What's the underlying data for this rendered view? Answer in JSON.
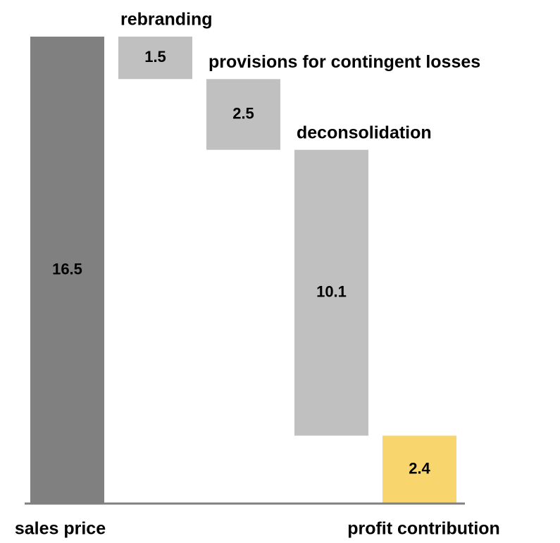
{
  "chart_data": {
    "type": "waterfall",
    "categories": [
      "sales price",
      "rebranding",
      "provisions for contingent losses",
      "deconsolidation",
      "profit contribution"
    ],
    "values": [
      16.5,
      1.5,
      2.5,
      10.1,
      2.4
    ],
    "kinds": [
      "total",
      "decrease",
      "decrease",
      "decrease",
      "total"
    ],
    "colors": {
      "total": "#808080",
      "decrease": "#c0c0c0",
      "result": "#f9d56e"
    }
  }
}
